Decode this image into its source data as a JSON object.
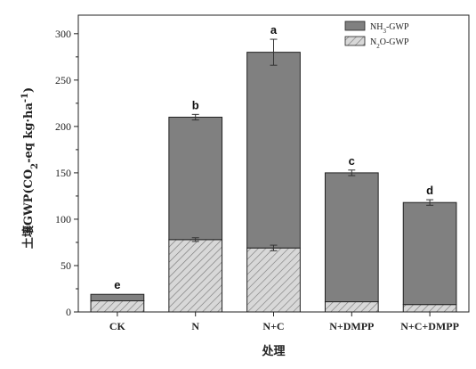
{
  "chart_data": {
    "type": "bar",
    "stacked": true,
    "categories": [
      "CK",
      "N",
      "N+C",
      "N+DMPP",
      "N+C+DMPP"
    ],
    "series": [
      {
        "name": "N2O-GWP",
        "values": [
          12,
          78,
          69,
          11,
          8
        ],
        "errors": [
          0,
          2,
          3,
          0,
          0
        ],
        "color": "#d8d8d8",
        "pattern": "hatch"
      },
      {
        "name": "NH3-GWP",
        "values": [
          7,
          132,
          211,
          139,
          110
        ],
        "errors": [
          0,
          3,
          14,
          3,
          3
        ],
        "color": "#808080",
        "pattern": "solid"
      }
    ],
    "totals": [
      19,
      210,
      280,
      150,
      118
    ],
    "significance_letters": [
      "e",
      "b",
      "a",
      "c",
      "d"
    ],
    "xlabel": "处理",
    "ylabel": {
      "prefix": "土壤GWP(CO",
      "sub": "2",
      "middle": "-eq kg·ha",
      "sup": "-1",
      "suffix": ")"
    },
    "ylim": [
      0,
      320
    ],
    "yticks": [
      0,
      50,
      100,
      150,
      200,
      250,
      300
    ],
    "grid": false,
    "legend": {
      "position": "top-right",
      "entries": [
        {
          "pre": "NH",
          "sub": "3",
          "post": "-GWP",
          "series": "NH3-GWP"
        },
        {
          "pre": "N",
          "sub": "2",
          "post": "O-GWP",
          "series": "N2O-GWP"
        }
      ]
    }
  }
}
